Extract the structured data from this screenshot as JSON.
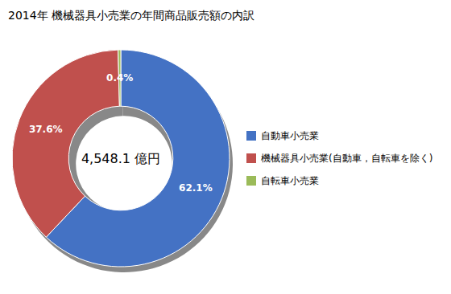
{
  "chart_data": {
    "type": "pie",
    "title": "2014年 機械器具小売業の年間商品販売額の内訳",
    "annotation": "4,548.1 億円",
    "categories": [
      "自動車小売業",
      "機械器具小売業(自動車，自転車を除く)",
      "自転車小売業"
    ],
    "values": [
      62.1,
      37.6,
      0.4
    ],
    "value_labels": [
      "62.1%",
      "37.6%",
      "0.4%"
    ],
    "colors": [
      "#4472C4",
      "#C0504D",
      "#9BBB59"
    ],
    "data_labels": true,
    "legend": "right"
  }
}
